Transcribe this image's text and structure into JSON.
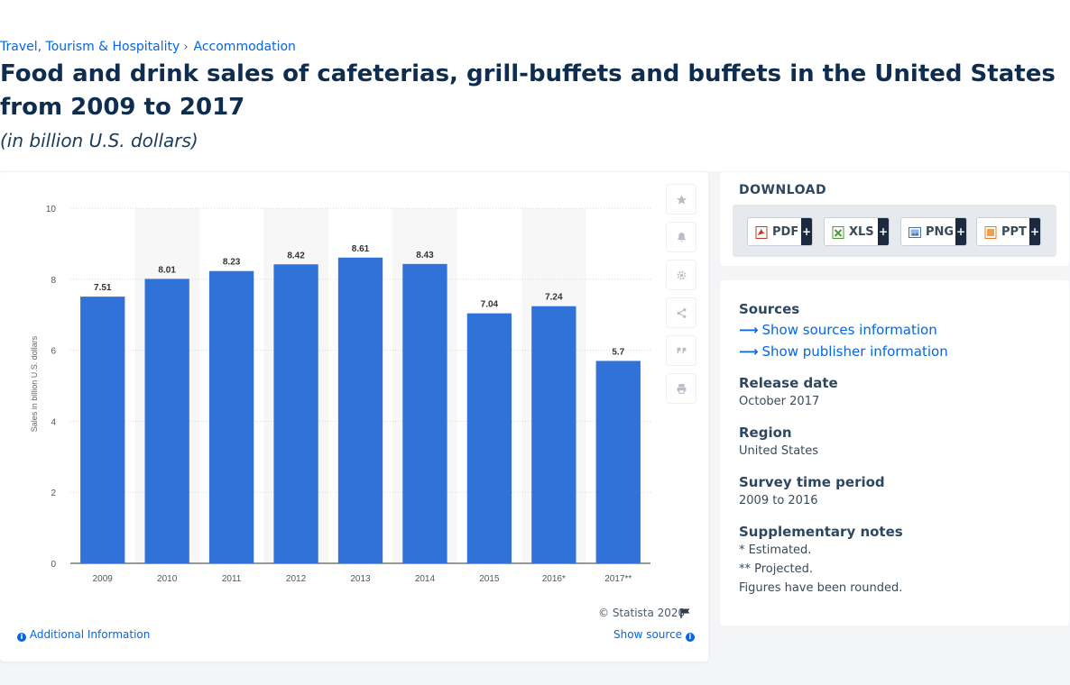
{
  "breadcrumb": {
    "category": "Travel, Tourism & Hospitality",
    "separator": "›",
    "subcategory": "Accommodation"
  },
  "page": {
    "title": "Food and drink sales of cafeterias, grill-buffets and buffets in the United States from 2009 to 2017",
    "subtitle": "(in billion U.S. dollars)"
  },
  "chart_data": {
    "type": "bar",
    "categories": [
      "2009",
      "2010",
      "2011",
      "2012",
      "2013",
      "2014",
      "2015",
      "2016*",
      "2017**"
    ],
    "values": [
      7.51,
      8.01,
      8.23,
      8.42,
      8.61,
      8.43,
      7.04,
      7.24,
      5.7
    ],
    "value_labels": [
      "7.51",
      "8.01",
      "8.23",
      "8.42",
      "8.61",
      "8.43",
      "7.04",
      "7.24",
      "5.7"
    ],
    "title": "",
    "xlabel": "",
    "ylabel": "Sales in billion U.S. dollars",
    "ylim": [
      0,
      10
    ],
    "yticks": [
      "0",
      "2",
      "4",
      "6",
      "8",
      "10"
    ],
    "grid": true,
    "bar_color": "#3172d9"
  },
  "chart_footer": {
    "copyright": "© Statista 2020",
    "additional_info": "Additional Information",
    "show_source": "Show source"
  },
  "tools": [
    "star-icon",
    "bell-icon",
    "gear-icon",
    "share-icon",
    "quote-icon",
    "print-icon"
  ],
  "download": {
    "title": "DOWNLOAD",
    "formats": [
      {
        "label": "PDF",
        "plus": "+"
      },
      {
        "label": "XLS",
        "plus": "+"
      },
      {
        "label": "PNG",
        "plus": "+"
      },
      {
        "label": "PPT",
        "plus": "+"
      }
    ]
  },
  "info": {
    "sources_heading": "Sources",
    "show_sources": "Show sources information",
    "show_publisher": "Show publisher information",
    "release_date_heading": "Release date",
    "release_date": "October 2017",
    "region_heading": "Region",
    "region": "United States",
    "survey_heading": "Survey time period",
    "survey_period": "2009 to 2016",
    "notes_heading": "Supplementary notes",
    "notes": [
      "* Estimated.",
      "** Projected.",
      "Figures have been rounded."
    ]
  }
}
